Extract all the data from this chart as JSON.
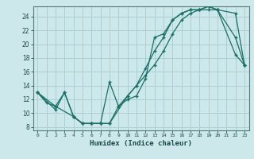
{
  "xlabel": "Humidex (Indice chaleur)",
  "bg_color": "#cce8ea",
  "grid_color": "#aacfd2",
  "line_color": "#1a6e65",
  "xlim": [
    -0.5,
    23.5
  ],
  "ylim": [
    7.5,
    25.5
  ],
  "xticks": [
    0,
    1,
    2,
    3,
    4,
    5,
    6,
    7,
    8,
    9,
    10,
    11,
    12,
    13,
    14,
    15,
    16,
    17,
    18,
    19,
    20,
    21,
    22,
    23
  ],
  "yticks": [
    8,
    10,
    12,
    14,
    16,
    18,
    20,
    22,
    24
  ],
  "line1_x": [
    0,
    1,
    2,
    3,
    4,
    5,
    6,
    7,
    8,
    9,
    10,
    11,
    12,
    13,
    14,
    15,
    16,
    17,
    18,
    19,
    20,
    22,
    23
  ],
  "line1_y": [
    13,
    11.5,
    11,
    13,
    9.5,
    8.5,
    8.5,
    8.5,
    8.5,
    11,
    12,
    12.5,
    15,
    21,
    21.5,
    23.5,
    24.5,
    25,
    25,
    25,
    25,
    21,
    17
  ],
  "line2_x": [
    0,
    2,
    3,
    4,
    5,
    6,
    7,
    8,
    9,
    10,
    11,
    12,
    13,
    14,
    15,
    16,
    17,
    18,
    19,
    20,
    22,
    23
  ],
  "line2_y": [
    13,
    10.5,
    13,
    9.5,
    8.5,
    8.5,
    8.5,
    14.5,
    11,
    12.5,
    14,
    16.5,
    19,
    21,
    23.5,
    24.5,
    25,
    25,
    25.5,
    25,
    18.5,
    17
  ],
  "line3_x": [
    0,
    2,
    4,
    5,
    6,
    7,
    8,
    10,
    11,
    12,
    13,
    14,
    15,
    16,
    17,
    18,
    19,
    20,
    22,
    23
  ],
  "line3_y": [
    13,
    11,
    9.5,
    8.5,
    8.5,
    8.5,
    8.5,
    12.5,
    14,
    15.5,
    17,
    19,
    21.5,
    23.5,
    24.5,
    25,
    25.5,
    25,
    24.5,
    17
  ]
}
